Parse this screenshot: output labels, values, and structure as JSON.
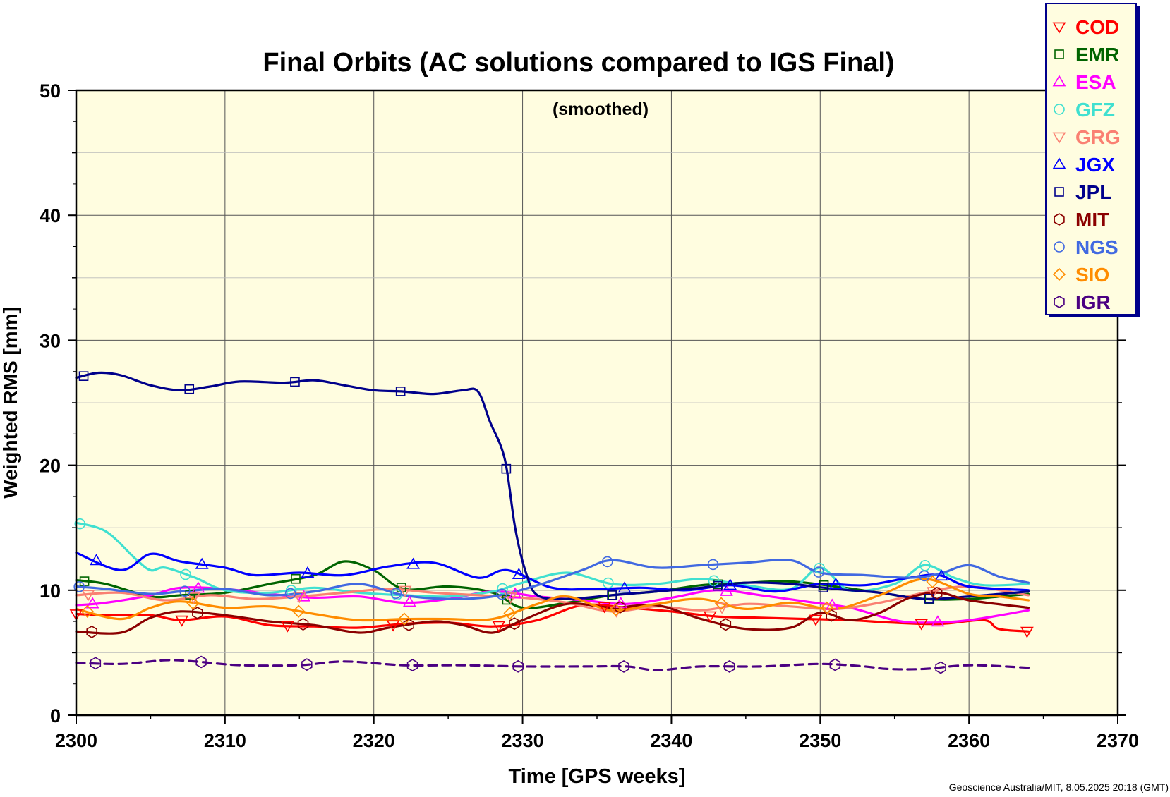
{
  "chart_data": {
    "type": "line",
    "title": "Final Orbits (AC solutions compared to IGS Final)",
    "subtitle": "(smoothed)",
    "xlabel": "Time [GPS weeks]",
    "ylabel": "Weighted RMS [mm]",
    "xlim": [
      2300,
      2370
    ],
    "ylim": [
      0,
      50
    ],
    "xticks": [
      2300,
      2310,
      2320,
      2330,
      2340,
      2350,
      2360,
      2370
    ],
    "yticks": [
      0,
      10,
      20,
      30,
      40,
      50
    ],
    "grid": true,
    "legend_position": "top-right",
    "background_color": "#fffde0",
    "credit": "Geoscience Australia/MIT, 8.05.2025 20:18 (GMT)",
    "series": [
      {
        "name": "COD",
        "color": "#ff0000",
        "marker": "triangle-down",
        "x": [
          2300,
          2302,
          2305,
          2307,
          2310,
          2313,
          2316,
          2319,
          2322,
          2325,
          2328,
          2331,
          2334,
          2337,
          2340,
          2343,
          2346,
          2349,
          2352,
          2355,
          2358,
          2361,
          2362,
          2364
        ],
        "y": [
          8.1,
          8.0,
          8.0,
          7.6,
          7.9,
          7.2,
          7.1,
          7.0,
          7.3,
          7.4,
          7.1,
          7.6,
          8.8,
          8.6,
          8.3,
          7.9,
          7.8,
          7.7,
          7.6,
          7.4,
          7.3,
          7.6,
          6.9,
          6.7
        ]
      },
      {
        "name": "EMR",
        "color": "#006400",
        "marker": "square",
        "x": [
          2300,
          2302,
          2305,
          2307,
          2310,
          2313,
          2316,
          2318,
          2320,
          2322,
          2325,
          2328,
          2330,
          2333,
          2336,
          2339,
          2342,
          2345,
          2348,
          2351,
          2354,
          2357,
          2360,
          2364
        ],
        "y": [
          10.8,
          10.5,
          9.5,
          9.6,
          9.8,
          10.5,
          11.2,
          12.3,
          11.6,
          10.1,
          10.3,
          9.8,
          8.6,
          9.0,
          9.6,
          9.9,
          10.4,
          10.6,
          10.7,
          10.3,
          9.8,
          9.3,
          9.3,
          9.7
        ]
      },
      {
        "name": "ESA",
        "color": "#ff00ff",
        "marker": "triangle-up",
        "x": [
          2300,
          2302,
          2305,
          2307,
          2310,
          2313,
          2316,
          2319,
          2322,
          2325,
          2328,
          2331,
          2334,
          2337,
          2340,
          2343,
          2346,
          2349,
          2352,
          2355,
          2357,
          2360,
          2364
        ],
        "y": [
          8.8,
          9.0,
          9.6,
          10.2,
          10.1,
          9.7,
          9.4,
          9.5,
          9.0,
          9.3,
          9.9,
          9.5,
          9.2,
          8.9,
          9.4,
          10.0,
          9.6,
          9.1,
          8.6,
          7.6,
          7.4,
          7.6,
          8.4
        ]
      },
      {
        "name": "GFZ",
        "color": "#40e0d0",
        "marker": "circle",
        "x": [
          2300,
          2302,
          2304,
          2305,
          2306,
          2308,
          2310,
          2313,
          2316,
          2319,
          2322,
          2325,
          2328,
          2330,
          2333,
          2336,
          2339,
          2342,
          2345,
          2348,
          2350,
          2352,
          2355,
          2357,
          2359,
          2361,
          2364
        ],
        "y": [
          15.4,
          14.7,
          12.5,
          11.6,
          11.8,
          11.0,
          10.0,
          9.8,
          10.2,
          9.8,
          9.6,
          9.5,
          9.9,
          10.6,
          11.4,
          10.5,
          10.5,
          10.9,
          10.4,
          10.1,
          11.8,
          10.0,
          10.5,
          12.0,
          11.0,
          10.4,
          10.5
        ]
      },
      {
        "name": "GRG",
        "color": "#fa8072",
        "marker": "triangle-down",
        "x": [
          2300,
          2303,
          2306,
          2309,
          2312,
          2315,
          2318,
          2321,
          2324,
          2327,
          2330,
          2333,
          2336,
          2339,
          2342,
          2345,
          2348,
          2351,
          2354,
          2357,
          2360,
          2364
        ],
        "y": [
          9.6,
          9.8,
          9.2,
          9.6,
          9.3,
          9.5,
          9.8,
          10.1,
          9.8,
          9.6,
          9.4,
          9.0,
          8.3,
          8.7,
          8.4,
          8.9,
          8.7,
          8.5,
          9.0,
          9.8,
          10.3,
          9.6
        ]
      },
      {
        "name": "JGX",
        "color": "#0000ff",
        "marker": "triangle-up",
        "x": [
          2300,
          2303,
          2305,
          2307,
          2310,
          2312,
          2315,
          2318,
          2321,
          2324,
          2327,
          2329,
          2332,
          2335,
          2338,
          2341,
          2344,
          2347,
          2350,
          2353,
          2356,
          2358,
          2360,
          2364
        ],
        "y": [
          13.0,
          11.6,
          12.9,
          12.3,
          11.8,
          11.2,
          11.4,
          11.2,
          11.9,
          12.2,
          11.0,
          11.6,
          10.2,
          10.1,
          10.2,
          10.0,
          10.4,
          9.9,
          10.5,
          10.4,
          11.0,
          11.2,
          10.3,
          10.0
        ]
      },
      {
        "name": "JPL",
        "color": "#00008b",
        "marker": "square",
        "x": [
          2300,
          2301.5,
          2303,
          2305,
          2307,
          2309,
          2311,
          2314,
          2316,
          2318,
          2320,
          2322,
          2324,
          2326,
          2327,
          2327.8,
          2328.8,
          2329.5,
          2330.2,
          2331,
          2333,
          2336,
          2339,
          2342,
          2345,
          2348,
          2351,
          2354,
          2357,
          2360,
          2364
        ],
        "y": [
          27.0,
          27.4,
          27.2,
          26.4,
          26.0,
          26.3,
          26.7,
          26.6,
          26.8,
          26.4,
          26.0,
          25.9,
          25.7,
          26.0,
          25.9,
          23.5,
          20.5,
          15.0,
          11.5,
          9.6,
          9.3,
          9.6,
          9.9,
          10.2,
          10.6,
          10.5,
          10.1,
          9.8,
          9.3,
          9.5,
          9.9
        ]
      },
      {
        "name": "MIT",
        "color": "#8b0000",
        "marker": "hexagon",
        "x": [
          2300,
          2303,
          2305,
          2307,
          2310,
          2313,
          2316,
          2319,
          2321,
          2324,
          2326,
          2328,
          2330,
          2333,
          2336,
          2339,
          2342,
          2345,
          2348,
          2350,
          2352,
          2354,
          2356,
          2358,
          2360,
          2364
        ],
        "y": [
          6.7,
          6.6,
          7.8,
          8.3,
          8.0,
          7.5,
          7.2,
          6.6,
          7.0,
          7.5,
          7.2,
          6.6,
          7.6,
          8.9,
          8.6,
          8.8,
          7.7,
          6.9,
          7.0,
          8.2,
          7.6,
          8.2,
          9.4,
          9.8,
          9.2,
          8.6
        ]
      },
      {
        "name": "NGS",
        "color": "#4169e1",
        "marker": "circle",
        "x": [
          2300,
          2302,
          2305,
          2307,
          2310,
          2313,
          2316,
          2319,
          2322,
          2325,
          2328,
          2331,
          2334,
          2336,
          2339,
          2342,
          2345,
          2348,
          2350,
          2353,
          2356,
          2358,
          2360,
          2362,
          2364
        ],
        "y": [
          10.3,
          10.1,
          9.7,
          9.9,
          10.1,
          9.6,
          9.9,
          10.5,
          9.6,
          9.3,
          9.5,
          10.4,
          11.6,
          12.4,
          11.8,
          12.0,
          12.2,
          12.4,
          11.4,
          11.2,
          11.0,
          11.3,
          12.0,
          11.1,
          10.6
        ]
      },
      {
        "name": "SIO",
        "color": "#ff8c00",
        "marker": "diamond",
        "x": [
          2300,
          2303,
          2305,
          2307,
          2310,
          2313,
          2316,
          2319,
          2322,
          2325,
          2328,
          2331,
          2333,
          2336,
          2339,
          2342,
          2345,
          2348,
          2351,
          2354,
          2357,
          2360,
          2362,
          2364
        ],
        "y": [
          8.5,
          7.7,
          8.6,
          9.1,
          8.6,
          8.7,
          8.1,
          7.6,
          7.7,
          7.7,
          7.7,
          8.9,
          9.5,
          8.4,
          8.9,
          9.3,
          8.5,
          9.0,
          8.5,
          9.6,
          10.9,
          9.7,
          9.5,
          9.2
        ]
      },
      {
        "name": "IGR",
        "color": "#4b0082",
        "marker": "hexagon",
        "dash": true,
        "x": [
          2300,
          2303,
          2306,
          2308,
          2311,
          2315,
          2318,
          2322,
          2326,
          2330,
          2334,
          2337,
          2339,
          2342,
          2346,
          2350,
          2353,
          2354.5,
          2357,
          2360,
          2364
        ],
        "y": [
          4.2,
          4.1,
          4.4,
          4.3,
          4.0,
          4.0,
          4.3,
          4.0,
          4.0,
          3.9,
          3.9,
          3.9,
          3.6,
          3.9,
          3.9,
          4.1,
          3.9,
          3.7,
          3.7,
          4.0,
          3.8
        ]
      }
    ]
  }
}
